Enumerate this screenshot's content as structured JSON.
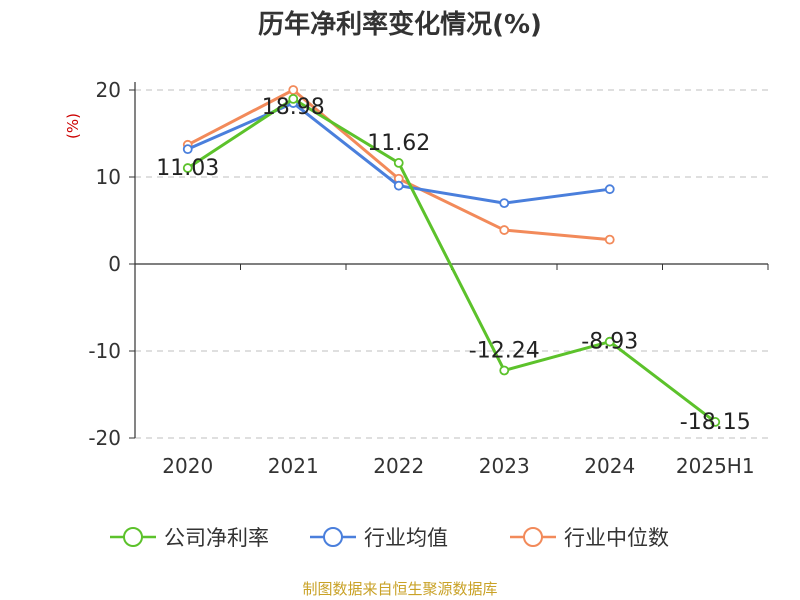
{
  "chart_data": {
    "type": "line",
    "title": "历年净利率变化情况(%)",
    "ylabel": "(%)",
    "xlabel": "",
    "categories": [
      "2020",
      "2021",
      "2022",
      "2023",
      "2024",
      "2025H1"
    ],
    "ylim": [
      -20,
      20
    ],
    "yticks": [
      -20,
      -10,
      0,
      10,
      20
    ],
    "grid": true,
    "legend_position": "bottom",
    "series": [
      {
        "name": "公司净利率",
        "color": "#5cc22b",
        "values": [
          11.03,
          18.98,
          11.62,
          -12.24,
          -8.93,
          -18.15
        ],
        "labels": [
          "11.03",
          "18.98",
          "11.62",
          "-12.24",
          "-8.93",
          "-18.15"
        ]
      },
      {
        "name": "行业均值",
        "color": "#4a7fdc",
        "values": [
          13.2,
          18.5,
          9.0,
          7.0,
          8.6,
          null
        ],
        "labels": []
      },
      {
        "name": "行业中位数",
        "color": "#f28a5a",
        "values": [
          13.7,
          20.0,
          9.8,
          3.9,
          2.8,
          null
        ],
        "labels": []
      }
    ]
  },
  "source": "制图数据来自恒生聚源数据库",
  "colors": {
    "axis": "#333333",
    "grid": "#cccccc",
    "ylabel": "#cc0000",
    "source": "#c9a227"
  }
}
